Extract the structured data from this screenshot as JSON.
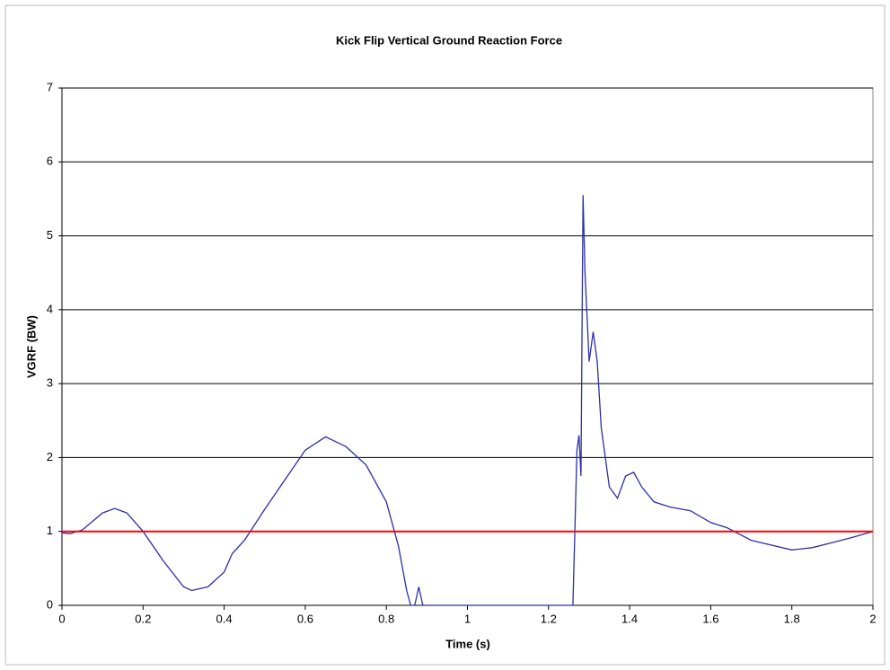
{
  "chart_data": {
    "type": "line",
    "title": "Kick Flip Vertical Ground Reaction Force",
    "x_label": "Time (s)",
    "y_label": "VGRF (BW)",
    "x": [
      0,
      0.02,
      0.05,
      0.1,
      0.13,
      0.16,
      0.2,
      0.25,
      0.3,
      0.32,
      0.36,
      0.4,
      0.42,
      0.45,
      0.5,
      0.55,
      0.6,
      0.65,
      0.7,
      0.75,
      0.8,
      0.83,
      0.85,
      0.86,
      0.87,
      0.88,
      0.89,
      1.0,
      1.2,
      1.26,
      1.265,
      1.27,
      1.275,
      1.28,
      1.285,
      1.29,
      1.3,
      1.31,
      1.32,
      1.33,
      1.35,
      1.37,
      1.39,
      1.41,
      1.43,
      1.46,
      1.5,
      1.55,
      1.6,
      1.64,
      1.7,
      1.8,
      1.85,
      1.9,
      1.95,
      2.0
    ],
    "series": [
      {
        "color": "#2b2fa8",
        "values": [
          0.98,
          0.97,
          1.02,
          1.25,
          1.31,
          1.25,
          1.0,
          0.6,
          0.25,
          0.2,
          0.25,
          0.45,
          0.7,
          0.88,
          1.3,
          1.7,
          2.1,
          2.28,
          2.15,
          1.9,
          1.4,
          0.8,
          0.2,
          0,
          0,
          0.25,
          0,
          0,
          0,
          0,
          1.0,
          2.1,
          2.3,
          1.75,
          5.55,
          4.5,
          3.3,
          3.7,
          3.3,
          2.4,
          1.6,
          1.45,
          1.75,
          1.8,
          1.6,
          1.4,
          1.33,
          1.28,
          1.12,
          1.05,
          0.88,
          0.75,
          0.78,
          0.85,
          0.92,
          1.0
        ]
      }
    ],
    "reference_line": {
      "value": 1,
      "color": "#ff0000"
    },
    "xlim": [
      0,
      2
    ],
    "xticks": [
      0,
      0.2,
      0.4,
      0.6,
      0.8,
      1,
      1.2,
      1.4,
      1.6,
      1.8,
      2
    ],
    "ylim": [
      0,
      7
    ],
    "yticks": [
      0,
      1,
      2,
      3,
      4,
      5,
      6,
      7
    ],
    "grid": true
  }
}
